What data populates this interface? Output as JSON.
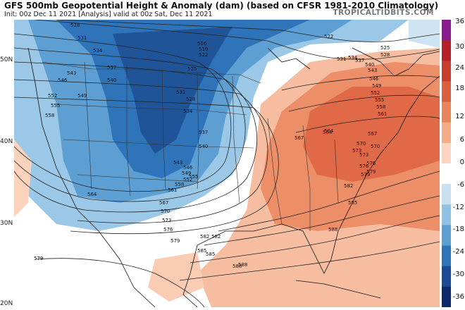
{
  "header": {
    "title": "GFS 500mb Geopotential Height & Anomaly (dam) (based on CFSR 1981-2010 Climatology)",
    "subtitle": "Init: 00z Dec 11 2021   [Analysis]   valid at 00z Sat, Dec 11 2021",
    "brand": "TROPICALTIDBITS.COM"
  },
  "lat_labels": [
    "50N",
    "40N",
    "30N",
    "20N"
  ],
  "colorbar": {
    "labels": [
      "36",
      "30",
      "24",
      "18",
      "12",
      "6",
      "0",
      "-6",
      "-12",
      "-18",
      "-24",
      "-30",
      "-36"
    ],
    "colors": [
      "#8a1d8c",
      "#b3222b",
      "#c83e2e",
      "#d9603f",
      "#e8855c",
      "#f3ac87",
      "#fbd5c0",
      "#ffffff",
      "#c9e0f0",
      "#92c2e3",
      "#5c9fd0",
      "#2e74b8",
      "#1c4a94",
      "#0d2a6b"
    ]
  },
  "contour_labels": [
    "528",
    "531",
    "534",
    "537",
    "543",
    "546",
    "540",
    "552",
    "549",
    "555",
    "558",
    "525",
    "531",
    "528",
    "534",
    "537",
    "540",
    "543",
    "546",
    "549",
    "552",
    "555",
    "558",
    "561",
    "564",
    "567",
    "570",
    "573",
    "576",
    "579",
    "582",
    "585",
    "588",
    "516",
    "519",
    "522",
    "522",
    "525",
    "528",
    "531",
    "534",
    "537",
    "540",
    "543",
    "546",
    "549",
    "552",
    "555",
    "558",
    "561",
    "564",
    "567",
    "570",
    "573",
    "576",
    "579",
    "582",
    "585",
    "588",
    "564",
    "567",
    "570",
    "573",
    "576",
    "579",
    "588",
    "585",
    "582",
    "579"
  ]
}
